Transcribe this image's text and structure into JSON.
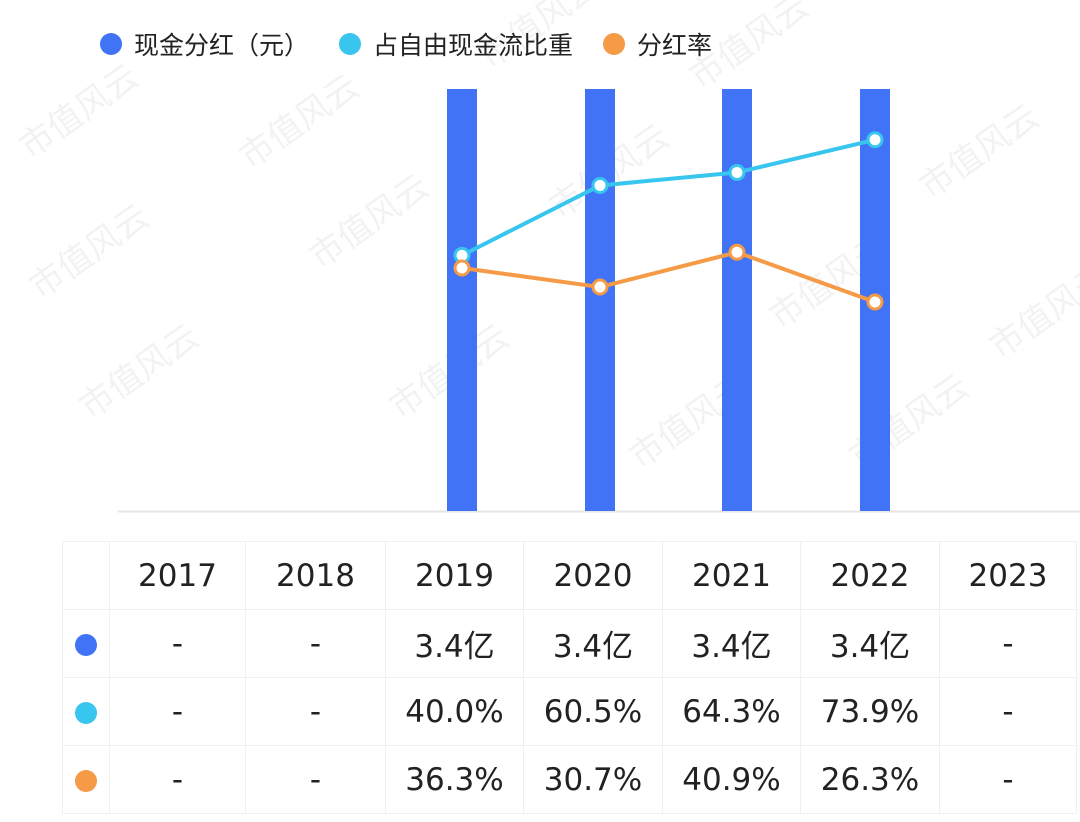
{
  "chart_data": {
    "type": "bar",
    "categories": [
      "2017",
      "2018",
      "2019",
      "2020",
      "2021",
      "2022",
      "2023"
    ],
    "series": [
      {
        "name": "现金分红（元）",
        "type": "bar",
        "color": "#4073f5",
        "values": [
          null,
          null,
          3.4,
          3.4,
          3.4,
          3.4,
          null
        ],
        "labels": [
          "-",
          "-",
          "3.4亿",
          "3.4亿",
          "3.4亿",
          "3.4亿",
          "-"
        ]
      },
      {
        "name": "占自由现金流比重",
        "type": "line",
        "color": "#38c5ee",
        "values": [
          null,
          null,
          40.0,
          60.5,
          64.3,
          73.9,
          null
        ],
        "labels": [
          "-",
          "-",
          "40.0%",
          "60.5%",
          "64.3%",
          "73.9%",
          "-"
        ]
      },
      {
        "name": "分红率",
        "type": "line",
        "color": "#f59a46",
        "values": [
          null,
          null,
          36.3,
          30.7,
          40.9,
          26.3,
          null
        ],
        "labels": [
          "-",
          "-",
          "36.3%",
          "30.7%",
          "40.9%",
          "26.3%",
          "-"
        ]
      }
    ],
    "bar_ylim": [
      0,
      3.4
    ],
    "line_ylim": [
      -35,
      80
    ],
    "grid": false,
    "legend": "top-left",
    "watermark": "市值风云"
  }
}
